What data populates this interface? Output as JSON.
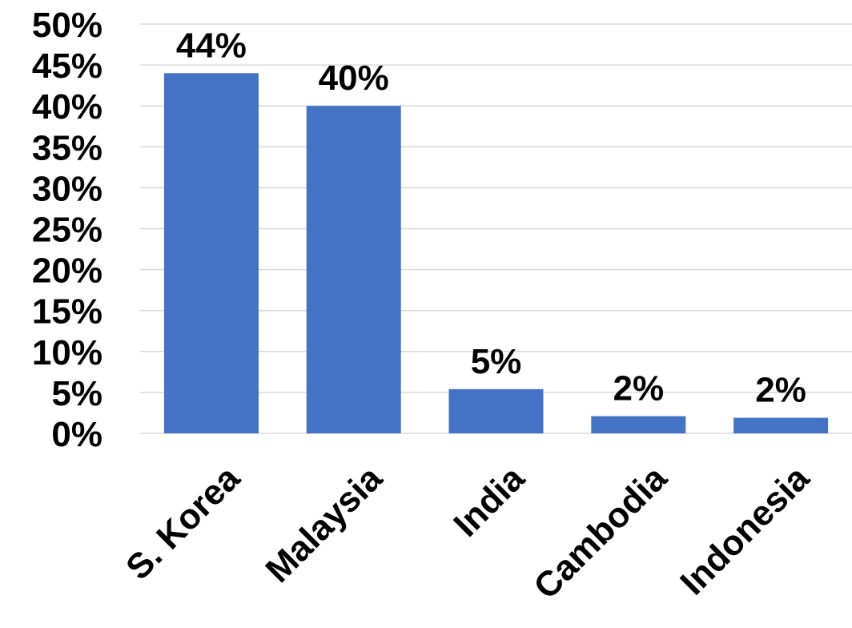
{
  "chart_data": {
    "type": "bar",
    "categories": [
      "S. Korea",
      "Malaysia",
      "India",
      "Cambodia",
      "Indonesia"
    ],
    "values": [
      44,
      40,
      5.4,
      2.1,
      1.9
    ],
    "data_labels": [
      "44%",
      "40%",
      "5%",
      "2%",
      "2%"
    ],
    "ylim": [
      0,
      50
    ],
    "yticks": [
      0,
      5,
      10,
      15,
      20,
      25,
      30,
      35,
      40,
      45,
      50
    ],
    "ytick_labels": [
      "0%",
      "5%",
      "10%",
      "15%",
      "20%",
      "25%",
      "30%",
      "35%",
      "40%",
      "45%",
      "50%"
    ],
    "title": "",
    "xlabel": "",
    "ylabel": "",
    "grid": true,
    "legend": "none",
    "bar_color": "#4472c4"
  }
}
